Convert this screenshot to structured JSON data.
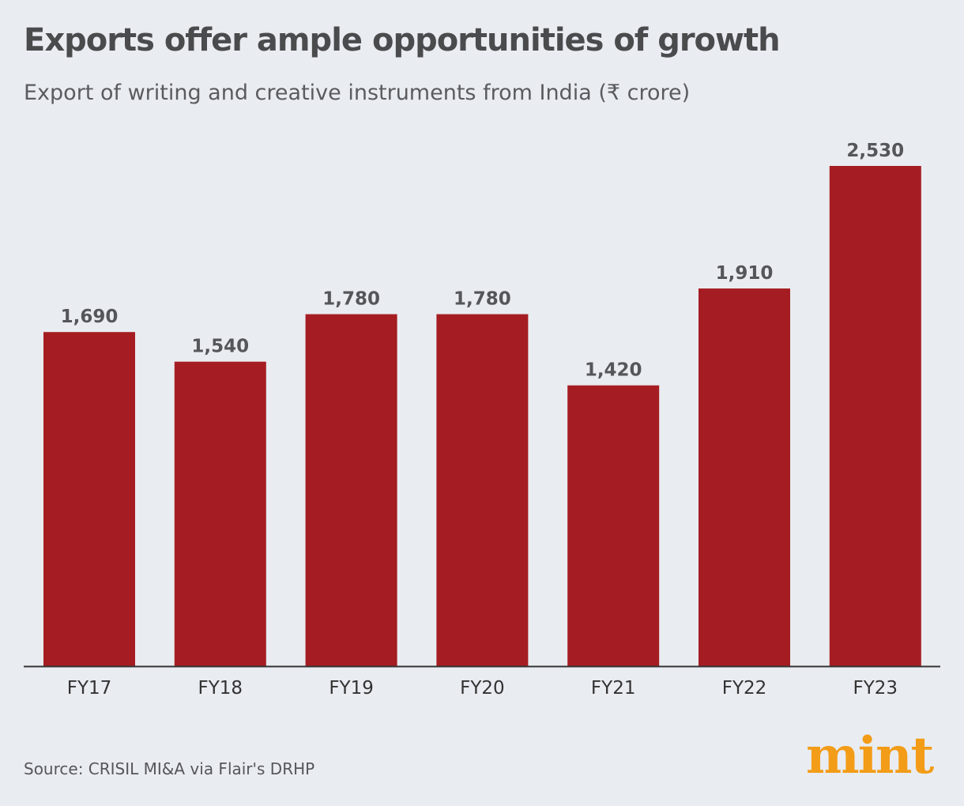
{
  "header": {
    "title": "Exports offer ample opportunities of growth",
    "subtitle": "Export of writing and creative instruments from India (₹ crore)"
  },
  "footer": {
    "source": "Source: CRISIL MI&A via Flair's DRHP",
    "logo": "mint"
  },
  "colors": {
    "bar": "#a51d22",
    "axis": "#333333",
    "value_label": "#55565a",
    "tick_label": "#333333",
    "logo": "#f39c17"
  },
  "chart_data": {
    "type": "bar",
    "title": "Exports offer ample opportunities of growth",
    "subtitle": "Export of writing and creative instruments from India (₹ crore)",
    "categories": [
      "FY17",
      "FY18",
      "FY19",
      "FY20",
      "FY21",
      "FY22",
      "FY23"
    ],
    "values": [
      1690,
      1540,
      1780,
      1780,
      1420,
      1910,
      2530
    ],
    "value_labels": [
      "1,690",
      "1,540",
      "1,780",
      "1,780",
      "1,420",
      "1,910",
      "2,530"
    ],
    "xlabel": "",
    "ylabel": "",
    "ylim": [
      0,
      2530
    ],
    "grid": false,
    "legend": "none"
  }
}
